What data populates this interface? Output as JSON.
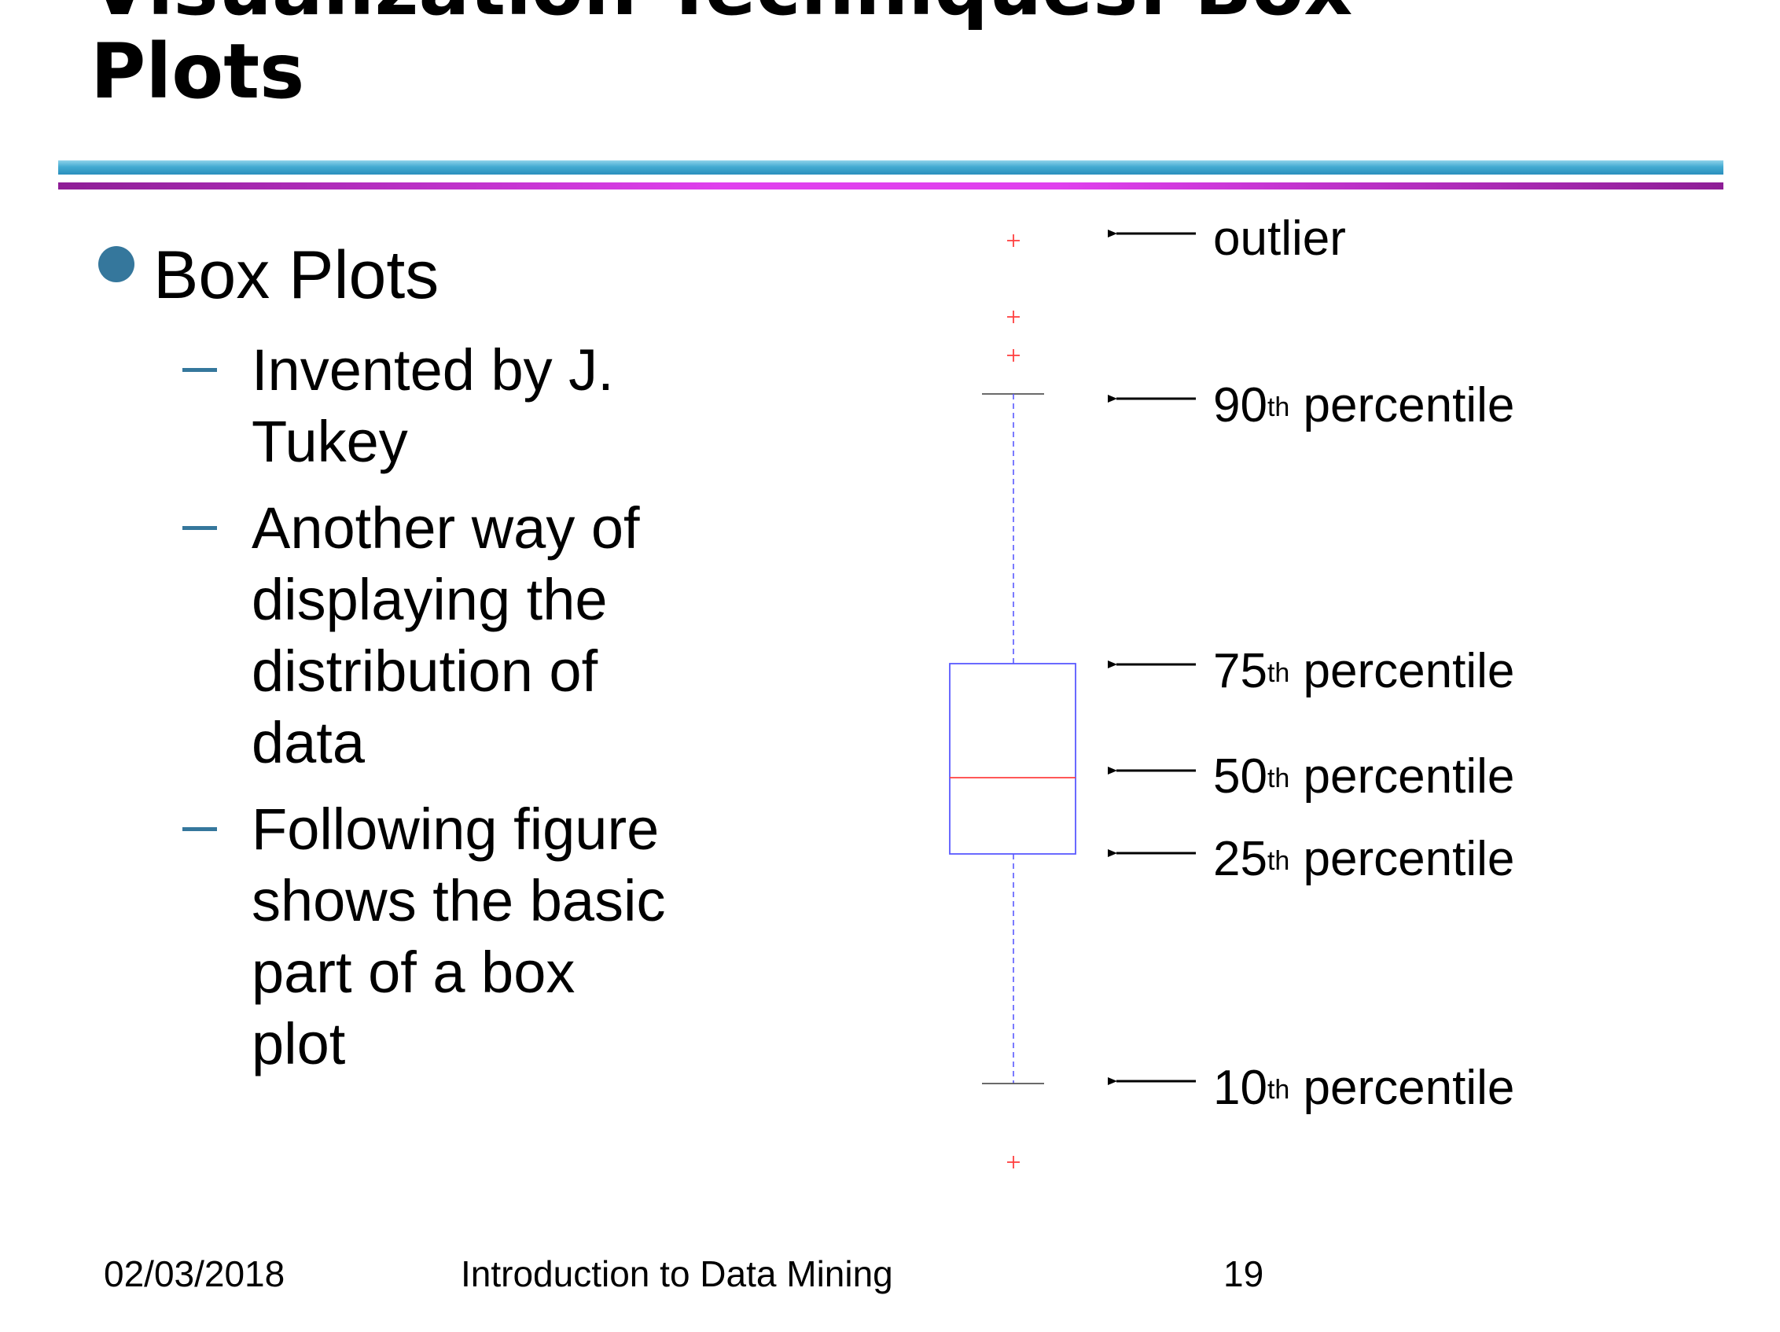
{
  "slide": {
    "title": "Visualization Techniques: Box\nPlots",
    "bullet": "Box Plots",
    "subbullets": [
      "Invented by J.\nTukey",
      "Another way of\ndisplaying the\ndistribution of\ndata",
      "Following figure\nshows the basic\npart of a box\nplot"
    ]
  },
  "chart_data": {
    "type": "box",
    "annotations": [
      {
        "num": "",
        "sup": "",
        "text": "outlier"
      },
      {
        "num": "90",
        "sup": "th",
        "text": " percentile"
      },
      {
        "num": "75",
        "sup": "th",
        "text": " percentile"
      },
      {
        "num": "50",
        "sup": "th",
        "text": " percentile"
      },
      {
        "num": "25",
        "sup": "th",
        "text": " percentile"
      },
      {
        "num": "10",
        "sup": "th",
        "text": " percentile"
      }
    ],
    "colors": {
      "box": "#5a5aff",
      "median": "#ff4040",
      "outlier": "#ff4040",
      "whisker_cap": "#555555"
    }
  },
  "footer": {
    "date": "02/03/2018",
    "course": "Introduction to Data Mining",
    "page": "19"
  }
}
